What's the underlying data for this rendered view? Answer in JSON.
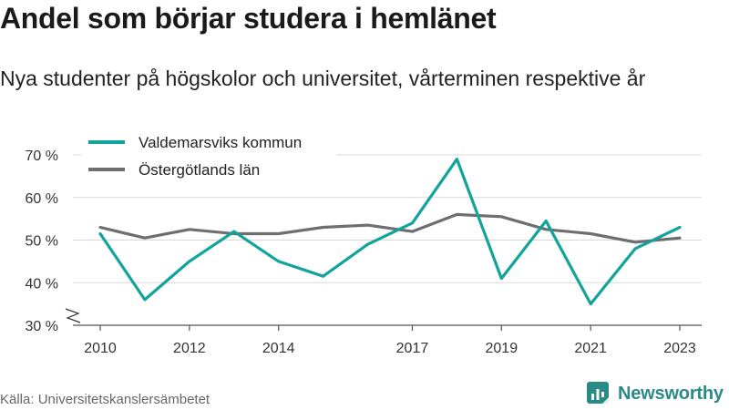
{
  "header": {
    "title": "Andel som börjar studera i hemlänet",
    "subtitle": "Nya studenter på högskolor och universitet, vårterminen respektive år"
  },
  "footer": {
    "source": "Källa: Universitetskanslersämbetet",
    "brand": "Newsworthy",
    "brand_icon": "newsworthy-logo-icon",
    "brand_color": "#2a8a85"
  },
  "chart_data": {
    "type": "line",
    "title": "Andel som börjar studera i hemlänet",
    "subtitle": "Nya studenter på högskolor och universitet, vårterminen respektive år",
    "x": [
      2010,
      2011,
      2012,
      2013,
      2014,
      2015,
      2016,
      2017,
      2018,
      2019,
      2020,
      2021,
      2022,
      2023
    ],
    "x_tick_labels": [
      "2010",
      "2012",
      "2014",
      "2017",
      "2019",
      "2021",
      "2023"
    ],
    "y_tick_labels": [
      "30 %",
      "40 %",
      "50 %",
      "60 %",
      "70 %"
    ],
    "ylim": [
      30,
      70
    ],
    "y_axis_break": true,
    "grid": "horizontal",
    "legend_position": "top-left",
    "series": [
      {
        "name": "Valdemarsviks kommun",
        "color": "#12a39a",
        "values": [
          51.5,
          36.0,
          45.0,
          52.0,
          45.0,
          41.5,
          49.0,
          54.0,
          69.0,
          41.0,
          54.5,
          35.0,
          48.0,
          53.0
        ]
      },
      {
        "name": "Östergötlands län",
        "color": "#6d6e71",
        "values": [
          53.0,
          50.5,
          52.5,
          51.5,
          51.5,
          53.0,
          53.5,
          52.0,
          56.0,
          55.5,
          52.5,
          51.5,
          49.5,
          50.5
        ]
      }
    ]
  }
}
